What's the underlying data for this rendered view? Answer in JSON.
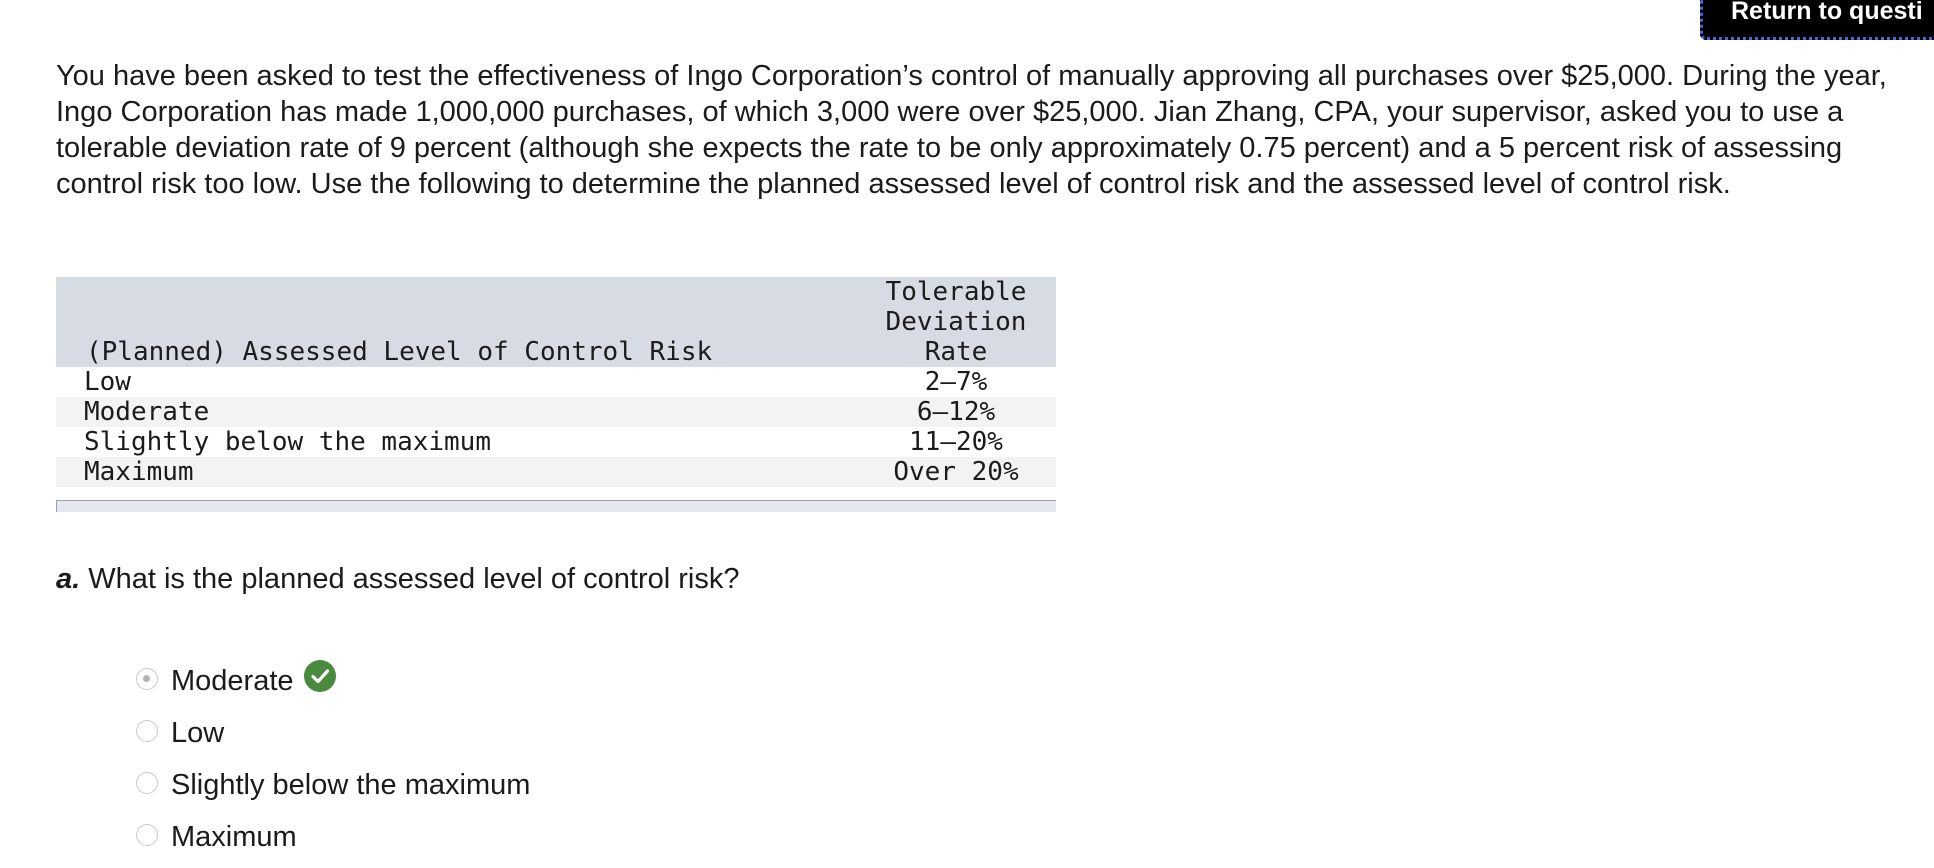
{
  "header": {
    "return_label": "Return to questi"
  },
  "question": {
    "text": "You have been asked to test the effectiveness of Ingo Corporation’s control of manually approving all purchases over $25,000. During the year, Ingo Corporation has made 1,000,000 purchases, of which 3,000 were over $25,000. Jian Zhang, CPA, your supervisor, asked you to use a tolerable deviation rate of 9 percent (although she expects the rate to be only approximately 0.75 percent) and a 5 percent risk of assessing control risk too low. Use the following to determine the planned assessed level of control risk and the assessed level of control risk."
  },
  "table": {
    "headers": {
      "risk": "(Planned) Assessed Level of Control Risk",
      "rate_line1": "Tolerable",
      "rate_line2": "Deviation",
      "rate_line3": "Rate"
    },
    "rows": [
      {
        "risk": "Low",
        "rate": "2–7%"
      },
      {
        "risk": "Moderate",
        "rate": "6–12%"
      },
      {
        "risk": "Slightly below the maximum",
        "rate": "11–20%"
      },
      {
        "risk": "Maximum",
        "rate": "Over 20%"
      }
    ]
  },
  "part_a": {
    "letter": "a.",
    "prompt": "What is the planned assessed level of control risk?",
    "selected_option": "Moderate",
    "options": [
      {
        "label": "Moderate",
        "selected": true,
        "correct": true
      },
      {
        "label": "Low",
        "selected": false
      },
      {
        "label": "Slightly below the maximum",
        "selected": false
      },
      {
        "label": "Maximum",
        "selected": false
      }
    ]
  },
  "colors": {
    "correct_green": "#4a8a3e",
    "table_header_bg": "#d7dbe4",
    "return_button_bg": "#000000"
  },
  "icons": {
    "correct": "check-circle-icon"
  }
}
